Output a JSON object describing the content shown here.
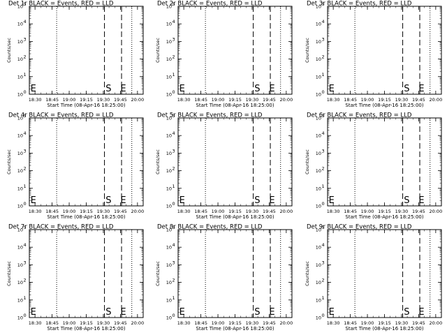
{
  "chart_data": [
    {
      "type": "line",
      "title": "Det 1r BLACK = Events, RED = LLD",
      "xlabel": "Start Time (08-Apr-16 18:25:00)",
      "ylabel": "Counts/sec",
      "x_ticks": [
        "18:30",
        "18:45",
        "19:00",
        "19:15",
        "19:30",
        "19:45",
        "20:00"
      ],
      "y_tick_exponents": [
        "0",
        "1",
        "2",
        "3",
        "4",
        "5"
      ],
      "yscale": "log",
      "ylim": [
        1,
        100000
      ],
      "dotted_lines": [
        "18:25",
        "18:49",
        "19:55"
      ],
      "dashed_lines": [
        "19:31",
        "19:46"
      ],
      "markers": [
        {
          "label": "E",
          "time": "18:26"
        },
        {
          "label": "S",
          "time": "19:32"
        },
        {
          "label": "E",
          "time": "19:45"
        }
      ],
      "series": []
    },
    {
      "type": "line",
      "title": "Det 2r BLACK = Events, RED = LLD",
      "xlabel": "Start Time (08-Apr-16 18:25:00)",
      "ylabel": "Counts/sec",
      "x_ticks": [
        "18:30",
        "18:45",
        "19:00",
        "19:15",
        "19:30",
        "19:45",
        "20:00"
      ],
      "y_tick_exponents": [
        "0",
        "1",
        "2",
        "3",
        "4",
        "5"
      ],
      "yscale": "log",
      "ylim": [
        1,
        100000
      ],
      "dotted_lines": [
        "18:25",
        "18:49",
        "19:55"
      ],
      "dashed_lines": [
        "19:31",
        "19:46"
      ],
      "markers": [
        {
          "label": "E",
          "time": "18:26"
        },
        {
          "label": "S",
          "time": "19:32"
        },
        {
          "label": "E",
          "time": "19:45"
        }
      ],
      "series": []
    },
    {
      "type": "line",
      "title": "Det 3r BLACK = Events, RED = LLD",
      "xlabel": "Start Time (08-Apr-16 18:25:00)",
      "ylabel": "Counts/sec",
      "x_ticks": [
        "18:30",
        "18:45",
        "19:00",
        "19:15",
        "19:30",
        "19:45",
        "20:00"
      ],
      "y_tick_exponents": [
        "0",
        "1",
        "2",
        "3",
        "4",
        "5"
      ],
      "yscale": "log",
      "ylim": [
        1,
        100000
      ],
      "dotted_lines": [
        "18:25",
        "18:49",
        "19:55"
      ],
      "dashed_lines": [
        "19:31",
        "19:46"
      ],
      "markers": [
        {
          "label": "E",
          "time": "18:26"
        },
        {
          "label": "S",
          "time": "19:32"
        },
        {
          "label": "E",
          "time": "19:45"
        }
      ],
      "series": []
    },
    {
      "type": "line",
      "title": "Det 4r BLACK = Events, RED = LLD",
      "xlabel": "Start Time (08-Apr-16 18:25:00)",
      "ylabel": "Counts/sec",
      "x_ticks": [
        "18:30",
        "18:45",
        "19:00",
        "19:15",
        "19:30",
        "19:45",
        "20:00"
      ],
      "y_tick_exponents": [
        "0",
        "1",
        "2",
        "3",
        "4",
        "5"
      ],
      "yscale": "log",
      "ylim": [
        1,
        100000
      ],
      "dotted_lines": [
        "18:25",
        "18:49",
        "19:55"
      ],
      "dashed_lines": [
        "19:31",
        "19:46"
      ],
      "markers": [
        {
          "label": "E",
          "time": "18:26"
        },
        {
          "label": "S",
          "time": "19:32"
        },
        {
          "label": "E",
          "time": "19:45"
        }
      ],
      "series": []
    },
    {
      "type": "line",
      "title": "Det 5r BLACK = Events, RED = LLD",
      "xlabel": "Start Time (08-Apr-16 18:25:00)",
      "ylabel": "Counts/sec",
      "x_ticks": [
        "18:30",
        "18:45",
        "19:00",
        "19:15",
        "19:30",
        "19:45",
        "20:00"
      ],
      "y_tick_exponents": [
        "0",
        "1",
        "2",
        "3",
        "4",
        "5"
      ],
      "yscale": "log",
      "ylim": [
        1,
        100000
      ],
      "dotted_lines": [
        "18:25",
        "18:49",
        "19:55"
      ],
      "dashed_lines": [
        "19:31",
        "19:46"
      ],
      "markers": [
        {
          "label": "E",
          "time": "18:26"
        },
        {
          "label": "S",
          "time": "19:32"
        },
        {
          "label": "E",
          "time": "19:45"
        }
      ],
      "series": []
    },
    {
      "type": "line",
      "title": "Det 6r BLACK = Events, RED = LLD",
      "xlabel": "Start Time (08-Apr-16 18:25:00)",
      "ylabel": "Counts/sec",
      "x_ticks": [
        "18:30",
        "18:45",
        "19:00",
        "19:15",
        "19:30",
        "19:45",
        "20:00"
      ],
      "y_tick_exponents": [
        "0",
        "1",
        "2",
        "3",
        "4",
        "5"
      ],
      "yscale": "log",
      "ylim": [
        1,
        100000
      ],
      "dotted_lines": [
        "18:25",
        "18:49",
        "19:55"
      ],
      "dashed_lines": [
        "19:31",
        "19:46"
      ],
      "markers": [
        {
          "label": "E",
          "time": "18:26"
        },
        {
          "label": "S",
          "time": "19:32"
        },
        {
          "label": "E",
          "time": "19:45"
        }
      ],
      "series": []
    },
    {
      "type": "line",
      "title": "Det 7r BLACK = Events, RED = LLD",
      "xlabel": "Start Time (08-Apr-16 18:25:00)",
      "ylabel": "Counts/sec",
      "x_ticks": [
        "18:30",
        "18:45",
        "19:00",
        "19:15",
        "19:30",
        "19:45",
        "20:00"
      ],
      "y_tick_exponents": [
        "0",
        "1",
        "2",
        "3",
        "4",
        "5"
      ],
      "yscale": "log",
      "ylim": [
        1,
        100000
      ],
      "dotted_lines": [
        "18:25",
        "18:49",
        "19:55"
      ],
      "dashed_lines": [
        "19:31",
        "19:46"
      ],
      "markers": [
        {
          "label": "E",
          "time": "18:26"
        },
        {
          "label": "S",
          "time": "19:32"
        },
        {
          "label": "E",
          "time": "19:45"
        }
      ],
      "series": []
    },
    {
      "type": "line",
      "title": "Det 8r BLACK = Events, RED = LLD",
      "xlabel": "Start Time (08-Apr-16 18:25:00)",
      "ylabel": "Counts/sec",
      "x_ticks": [
        "18:30",
        "18:45",
        "19:00",
        "19:15",
        "19:30",
        "19:45",
        "20:00"
      ],
      "y_tick_exponents": [
        "0",
        "1",
        "2",
        "3",
        "4",
        "5"
      ],
      "yscale": "log",
      "ylim": [
        1,
        100000
      ],
      "dotted_lines": [
        "18:25",
        "18:49",
        "19:55"
      ],
      "dashed_lines": [
        "19:31",
        "19:46"
      ],
      "markers": [
        {
          "label": "E",
          "time": "18:26"
        },
        {
          "label": "S",
          "time": "19:32"
        },
        {
          "label": "E",
          "time": "19:45"
        }
      ],
      "series": []
    },
    {
      "type": "line",
      "title": "Det 9r BLACK = Events, RED = LLD",
      "xlabel": "Start Time (08-Apr-16 18:25:00)",
      "ylabel": "Counts/sec",
      "x_ticks": [
        "18:30",
        "18:45",
        "19:00",
        "19:15",
        "19:30",
        "19:45",
        "20:00"
      ],
      "y_tick_exponents": [
        "0",
        "1",
        "2",
        "3",
        "4",
        "5"
      ],
      "yscale": "log",
      "ylim": [
        1,
        100000
      ],
      "dotted_lines": [
        "18:25",
        "18:49",
        "19:55"
      ],
      "dashed_lines": [
        "19:31",
        "19:46"
      ],
      "markers": [
        {
          "label": "E",
          "time": "18:26"
        },
        {
          "label": "S",
          "time": "19:32"
        },
        {
          "label": "E",
          "time": "19:45"
        }
      ],
      "series": []
    }
  ]
}
